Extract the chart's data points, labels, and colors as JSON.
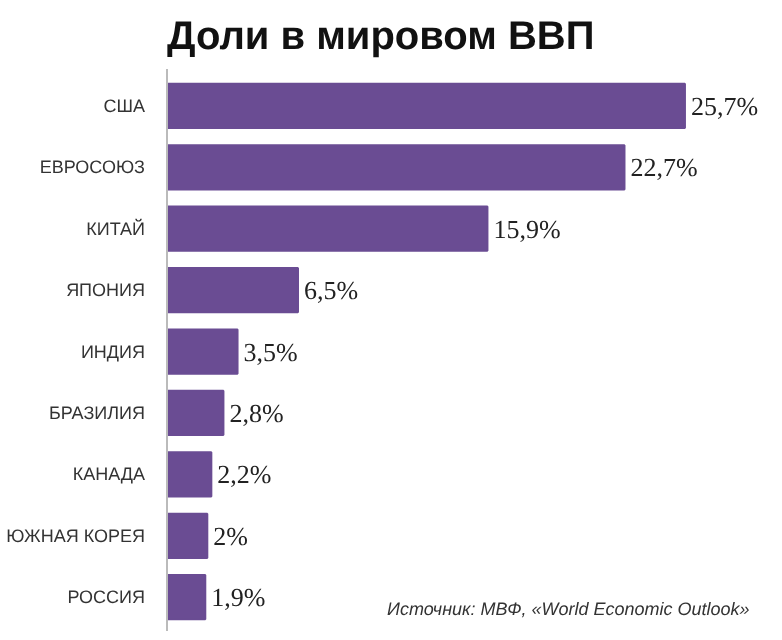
{
  "chart_data": {
    "type": "bar",
    "orientation": "horizontal",
    "title": "Доли в мировом ВВП",
    "categories": [
      "США",
      "ЕВРОСОЮЗ",
      "КИТАЙ",
      "ЯПОНИЯ",
      "ИНДИЯ",
      "БРАЗИЛИЯ",
      "КАНАДА",
      "ЮЖНАЯ КОРЕЯ",
      "РОССИЯ"
    ],
    "values": [
      25.7,
      22.7,
      15.9,
      6.5,
      3.5,
      2.8,
      2.2,
      2,
      1.9
    ],
    "value_labels": [
      "25,7%",
      "22,7%",
      "15,9%",
      "6,5%",
      "3,5%",
      "2,8%",
      "2,2%",
      "2%",
      "1,9%"
    ],
    "color": "#6a4c93",
    "annotations": [
      "Источник: МВФ, «World Economic Outlook»"
    ],
    "grid": false
  }
}
